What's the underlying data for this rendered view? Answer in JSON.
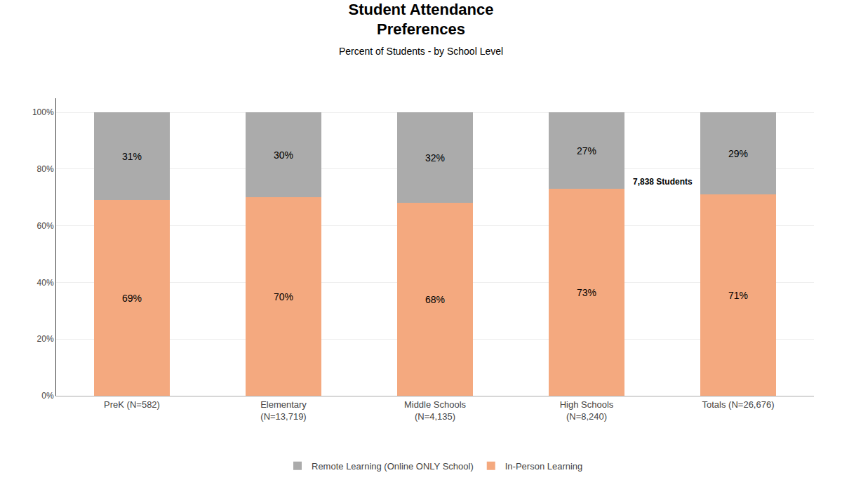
{
  "chart_data": {
    "type": "bar",
    "stacked": true,
    "title": "Student Attendance\nPreferences",
    "subtitle": "Percent of Students - by School Level",
    "annotation": "7,838 Students",
    "categories": [
      "PreK (N=582)",
      "Elementary\n(N=13,719)",
      "Middle Schools\n(N=4,135)",
      "High Schools\n(N=8,240)",
      "Totals (N=26,676)"
    ],
    "series": [
      {
        "name": "In-Person Learning",
        "color": "#F4A97F",
        "values": [
          69,
          70,
          68,
          73,
          71
        ],
        "value_labels": [
          "69%",
          "70%",
          "68%",
          "73%",
          "71%"
        ]
      },
      {
        "name": "Remote Learning (Online ONLY School)",
        "color": "#ABABAB",
        "values": [
          31,
          30,
          32,
          27,
          29
        ],
        "value_labels": [
          "31%",
          "30%",
          "32%",
          "27%",
          "29%"
        ]
      }
    ],
    "data_labels": true,
    "ylim": [
      0,
      105
    ],
    "yticks": [
      {
        "value": 0,
        "label": "0%"
      },
      {
        "value": 20,
        "label": "20%"
      },
      {
        "value": 40,
        "label": "40%"
      },
      {
        "value": 60,
        "label": "60%"
      },
      {
        "value": 80,
        "label": "80%"
      },
      {
        "value": 100,
        "label": "100%"
      }
    ],
    "grid": true,
    "legend": "bottom"
  }
}
